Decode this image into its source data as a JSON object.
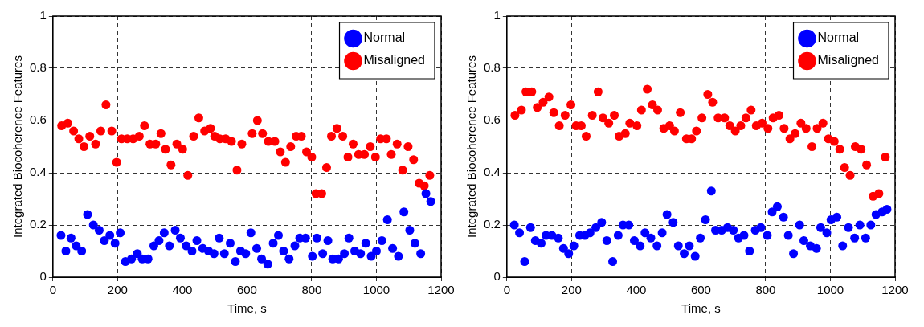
{
  "chart_data": [
    {
      "type": "scatter",
      "xlabel": "Time, s",
      "ylabel": "Integrated Biocoherence Features",
      "xlim": [
        0,
        1200
      ],
      "xticks": [
        0,
        200,
        400,
        600,
        800,
        1000,
        1200
      ],
      "ylim": [
        0,
        1
      ],
      "yticks": [
        0,
        0.2,
        0.4,
        0.6,
        0.8,
        1
      ],
      "grid": true,
      "legend": "top right",
      "marker": "circle",
      "series": [
        {
          "name": "Normal",
          "color": "#0000ff",
          "x": [
            25,
            40,
            56,
            72,
            89,
            107,
            125,
            143,
            159,
            176,
            192,
            208,
            224,
            243,
            261,
            276,
            294,
            312,
            328,
            344,
            360,
            378,
            394,
            412,
            430,
            445,
            463,
            481,
            498,
            514,
            530,
            548,
            564,
            580,
            596,
            612,
            630,
            645,
            664,
            681,
            697,
            713,
            730,
            748,
            763,
            781,
            802,
            816,
            834,
            850,
            865,
            883,
            901,
            915,
            933,
            951,
            967,
            984,
            1000,
            1017,
            1034,
            1050,
            1068,
            1085,
            1103,
            1119,
            1137,
            1153,
            1168
          ],
          "values": [
            0.16,
            0.1,
            0.15,
            0.12,
            0.1,
            0.24,
            0.2,
            0.18,
            0.14,
            0.16,
            0.13,
            0.17,
            0.06,
            0.07,
            0.09,
            0.07,
            0.07,
            0.12,
            0.14,
            0.17,
            0.12,
            0.18,
            0.15,
            0.12,
            0.1,
            0.14,
            0.11,
            0.1,
            0.09,
            0.15,
            0.09,
            0.13,
            0.06,
            0.1,
            0.09,
            0.17,
            0.11,
            0.07,
            0.05,
            0.13,
            0.16,
            0.1,
            0.07,
            0.12,
            0.15,
            0.15,
            0.08,
            0.15,
            0.09,
            0.14,
            0.07,
            0.07,
            0.09,
            0.15,
            0.1,
            0.09,
            0.13,
            0.08,
            0.1,
            0.14,
            0.22,
            0.11,
            0.08,
            0.25,
            0.18,
            0.13,
            0.09,
            0.32,
            0.29
          ]
        },
        {
          "name": "Misaligned",
          "color": "#ff0000",
          "x": [
            27,
            46,
            64,
            80,
            96,
            114,
            132,
            148,
            164,
            182,
            197,
            212,
            230,
            248,
            267,
            283,
            300,
            318,
            334,
            348,
            365,
            383,
            401,
            417,
            435,
            451,
            469,
            487,
            500,
            516,
            534,
            552,
            569,
            584,
            616,
            632,
            648,
            666,
            686,
            703,
            719,
            735,
            752,
            768,
            784,
            800,
            813,
            831,
            846,
            861,
            878,
            896,
            912,
            928,
            945,
            963,
            981,
            997,
            1013,
            1031,
            1046,
            1064,
            1081,
            1098,
            1115,
            1132,
            1148,
            1165
          ],
          "values": [
            0.58,
            0.59,
            0.56,
            0.53,
            0.5,
            0.54,
            0.51,
            0.56,
            0.66,
            0.56,
            0.44,
            0.53,
            0.53,
            0.53,
            0.54,
            0.58,
            0.51,
            0.51,
            0.55,
            0.49,
            0.43,
            0.51,
            0.49,
            0.39,
            0.54,
            0.61,
            0.56,
            0.57,
            0.54,
            0.53,
            0.53,
            0.52,
            0.41,
            0.51,
            0.55,
            0.6,
            0.55,
            0.52,
            0.52,
            0.48,
            0.44,
            0.5,
            0.54,
            0.54,
            0.48,
            0.46,
            0.32,
            0.32,
            0.42,
            0.54,
            0.57,
            0.54,
            0.46,
            0.51,
            0.47,
            0.47,
            0.5,
            0.46,
            0.53,
            0.53,
            0.47,
            0.51,
            0.41,
            0.5,
            0.45,
            0.36,
            0.35,
            0.39
          ]
        }
      ]
    },
    {
      "type": "scatter",
      "xlabel": "Time, s",
      "ylabel": "Integrated Biocoherence Features",
      "xlim": [
        0,
        1200
      ],
      "xticks": [
        0,
        200,
        400,
        600,
        800,
        1000,
        1200
      ],
      "ylim": [
        0,
        1
      ],
      "yticks": [
        0,
        0.2,
        0.4,
        0.6,
        0.8,
        1
      ],
      "grid": true,
      "legend": "top right",
      "marker": "circle",
      "series": [
        {
          "name": "Normal",
          "color": "#0000ff",
          "x": [
            23,
            39,
            55,
            73,
            88,
            106,
            121,
            139,
            159,
            175,
            191,
            207,
            225,
            241,
            257,
            275,
            293,
            309,
            327,
            344,
            359,
            377,
            394,
            412,
            427,
            445,
            464,
            480,
            495,
            514,
            530,
            548,
            564,
            582,
            598,
            614,
            632,
            645,
            664,
            682,
            700,
            716,
            733,
            750,
            768,
            785,
            805,
            820,
            836,
            855,
            870,
            886,
            905,
            918,
            938,
            957,
            970,
            989,
            1002,
            1020,
            1038,
            1056,
            1075,
            1091,
            1109,
            1125,
            1141,
            1160,
            1175
          ],
          "values": [
            0.2,
            0.17,
            0.06,
            0.19,
            0.14,
            0.13,
            0.16,
            0.16,
            0.15,
            0.11,
            0.09,
            0.12,
            0.16,
            0.16,
            0.17,
            0.19,
            0.21,
            0.14,
            0.06,
            0.16,
            0.2,
            0.2,
            0.14,
            0.12,
            0.17,
            0.15,
            0.12,
            0.17,
            0.24,
            0.21,
            0.12,
            0.09,
            0.12,
            0.08,
            0.15,
            0.22,
            0.33,
            0.18,
            0.18,
            0.19,
            0.18,
            0.15,
            0.16,
            0.1,
            0.18,
            0.19,
            0.16,
            0.25,
            0.27,
            0.23,
            0.16,
            0.09,
            0.2,
            0.14,
            0.12,
            0.11,
            0.19,
            0.17,
            0.22,
            0.23,
            0.12,
            0.19,
            0.15,
            0.2,
            0.15,
            0.2,
            0.24,
            0.25,
            0.26
          ]
        },
        {
          "name": "Misaligned",
          "color": "#ff0000",
          "x": [
            25,
            45,
            59,
            77,
            94,
            112,
            130,
            145,
            162,
            180,
            198,
            214,
            230,
            245,
            264,
            282,
            297,
            315,
            332,
            347,
            366,
            380,
            402,
            416,
            434,
            450,
            466,
            485,
            503,
            518,
            536,
            555,
            571,
            586,
            603,
            621,
            636,
            653,
            673,
            689,
            706,
            723,
            739,
            755,
            771,
            789,
            807,
            823,
            841,
            857,
            875,
            891,
            909,
            925,
            943,
            959,
            977,
            994,
            1012,
            1029,
            1044,
            1061,
            1077,
            1095,
            1112,
            1132,
            1150,
            1170
          ],
          "values": [
            0.62,
            0.64,
            0.71,
            0.71,
            0.65,
            0.67,
            0.69,
            0.63,
            0.58,
            0.62,
            0.66,
            0.58,
            0.58,
            0.54,
            0.62,
            0.71,
            0.61,
            0.59,
            0.62,
            0.54,
            0.55,
            0.59,
            0.58,
            0.64,
            0.72,
            0.66,
            0.64,
            0.57,
            0.58,
            0.56,
            0.63,
            0.53,
            0.53,
            0.56,
            0.61,
            0.7,
            0.67,
            0.61,
            0.61,
            0.58,
            0.56,
            0.58,
            0.61,
            0.64,
            0.58,
            0.59,
            0.57,
            0.61,
            0.62,
            0.57,
            0.53,
            0.55,
            0.59,
            0.57,
            0.5,
            0.57,
            0.59,
            0.53,
            0.52,
            0.49,
            0.42,
            0.39,
            0.5,
            0.49,
            0.43,
            0.31,
            0.32,
            0.46
          ]
        }
      ]
    }
  ]
}
